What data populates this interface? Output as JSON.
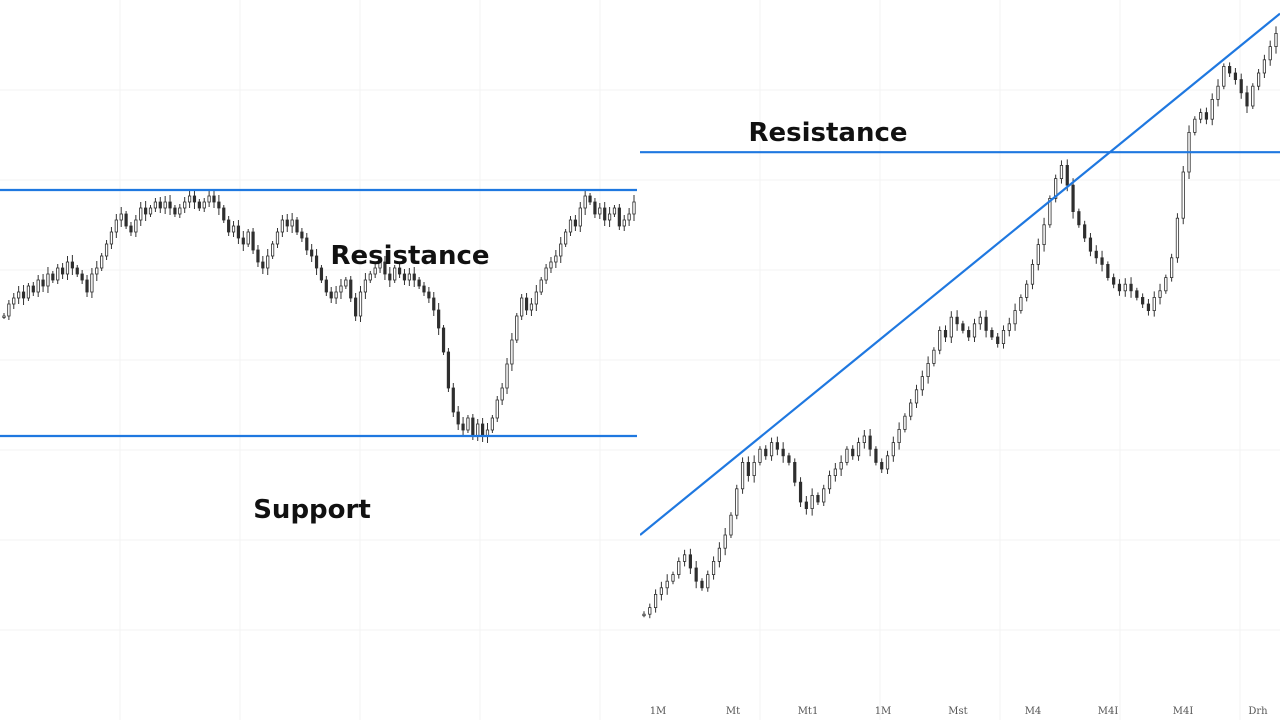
{
  "colors": {
    "level_line": "#1f78e0",
    "candle": "#2e2e2e",
    "grid": "#f3f3f3",
    "background": "#ffffff"
  },
  "chart_data": [
    {
      "type": "line",
      "chart_kind": "candlestick",
      "title": "",
      "xlabel": "",
      "ylabel": "",
      "ylim": [
        0,
        100
      ],
      "grid": true,
      "annotations": [
        {
          "kind": "horizontal-level",
          "label": "Resistance",
          "y": 75
        },
        {
          "kind": "horizontal-level",
          "label": "Support",
          "y": 34
        }
      ],
      "series": [
        {
          "values": [
            54,
            56,
            57,
            58,
            57,
            59,
            58,
            60,
            59,
            61,
            60,
            62,
            61,
            63,
            62,
            61,
            60,
            58,
            61,
            62,
            64,
            66,
            68,
            70,
            71,
            69,
            68,
            70,
            72,
            71,
            72,
            73,
            72,
            73,
            72,
            71,
            72,
            73,
            74,
            73,
            72,
            73,
            74,
            73,
            72,
            70,
            68,
            69,
            67,
            66,
            68,
            65,
            63,
            62,
            64,
            66,
            68,
            70,
            69,
            70,
            68,
            67,
            65,
            64,
            62,
            60,
            58,
            57,
            58,
            59,
            60,
            57,
            54,
            58,
            60,
            61,
            62,
            63,
            61,
            60,
            62,
            61,
            60,
            61,
            60,
            59,
            58,
            57,
            55,
            52,
            48,
            42,
            38,
            36,
            35,
            37,
            34,
            36,
            34,
            35,
            37,
            40,
            42,
            46,
            50,
            54,
            57,
            55,
            56,
            58,
            60,
            62,
            63,
            64,
            66,
            68,
            70,
            69,
            72,
            74,
            73,
            71,
            72,
            70,
            71,
            72,
            69,
            70,
            71,
            73
          ]
        }
      ]
    },
    {
      "type": "line",
      "chart_kind": "candlestick",
      "title": "",
      "xlabel": "",
      "ylabel": "",
      "ylim": [
        0,
        100
      ],
      "grid": true,
      "x_tick_labels": [
        "1M",
        "Mt",
        "Mt1",
        "1M",
        "Mst",
        "M4",
        "M4I",
        "M4I",
        "Drh"
      ],
      "annotations": [
        {
          "kind": "horizontal-level",
          "label": "Resistance",
          "y": 83
        },
        {
          "kind": "trendline",
          "label": "",
          "from": {
            "x": 0,
            "y": 25
          },
          "to": {
            "x": 100,
            "y": 104
          }
        }
      ],
      "series": [
        {
          "values": [
            13,
            14,
            16,
            17,
            18,
            19,
            21,
            22,
            20,
            18,
            17,
            19,
            21,
            23,
            25,
            28,
            32,
            36,
            34,
            36,
            38,
            37,
            39,
            38,
            37,
            36,
            33,
            30,
            29,
            31,
            30,
            32,
            34,
            35,
            36,
            38,
            37,
            39,
            40,
            38,
            36,
            35,
            37,
            39,
            41,
            43,
            45,
            47,
            49,
            51,
            53,
            56,
            55,
            58,
            57,
            56,
            55,
            57,
            58,
            56,
            55,
            54,
            56,
            57,
            59,
            61,
            63,
            66,
            69,
            72,
            76,
            79,
            81,
            78,
            74,
            72,
            70,
            68,
            67,
            66,
            64,
            63,
            62,
            63,
            62,
            61,
            60,
            59,
            61,
            62,
            64,
            67,
            73,
            80,
            86,
            88,
            89,
            88,
            91,
            93,
            96,
            95,
            94,
            92,
            90,
            93,
            95,
            97,
            99,
            101
          ]
        }
      ]
    }
  ]
}
